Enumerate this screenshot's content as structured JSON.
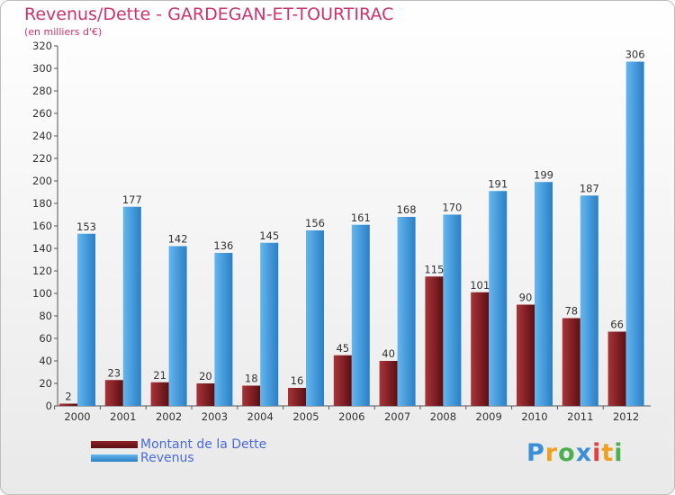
{
  "chart_data": {
    "type": "bar",
    "title": "Revenus/Dette - GARDEGAN-ET-TOURTIRAC",
    "subtitle": "(en milliers d'€)",
    "categories": [
      "2000",
      "2001",
      "2002",
      "2003",
      "2004",
      "2005",
      "2006",
      "2007",
      "2008",
      "2009",
      "2010",
      "2011",
      "2012"
    ],
    "series": [
      {
        "name": "Montant de la Dette",
        "color": "#7a1a1e",
        "values": [
          2,
          23,
          21,
          20,
          18,
          16,
          45,
          40,
          115,
          101,
          90,
          78,
          66
        ]
      },
      {
        "name": "Revenus",
        "color": "#3f97dd",
        "values": [
          153,
          177,
          142,
          136,
          145,
          156,
          161,
          168,
          170,
          191,
          199,
          187,
          306
        ]
      }
    ],
    "ylim": [
      0,
      320
    ],
    "yticks": [
      0,
      20,
      40,
      60,
      80,
      100,
      120,
      140,
      160,
      180,
      200,
      220,
      240,
      260,
      280,
      300,
      320
    ],
    "xlabel": "",
    "ylabel": "",
    "legend_position": "bottom-left",
    "grid": false
  },
  "logo": {
    "text": "Proxiti",
    "letters": [
      "P",
      "r",
      "o",
      "x",
      "i",
      "t",
      "i"
    ],
    "colors": [
      "#3a8fd6",
      "#f0a020",
      "#4caf50",
      "#3a8fd6",
      "#e04040",
      "#f0a020",
      "#4caf50"
    ]
  }
}
